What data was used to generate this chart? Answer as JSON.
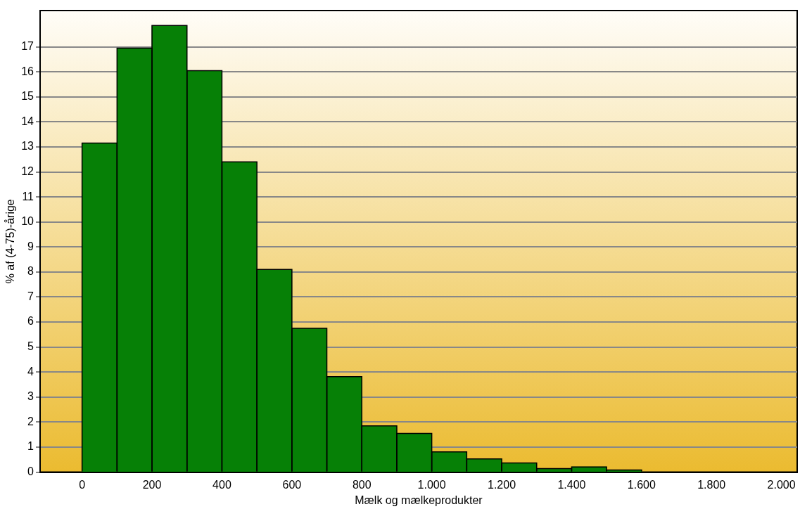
{
  "chart_data": {
    "type": "histogram",
    "xlabel": "Mælk og mælkeprodukter",
    "ylabel": "% af (4-75)-årige",
    "bins": [
      0,
      100,
      200,
      300,
      400,
      500,
      600,
      700,
      800,
      900,
      1000,
      1100,
      1200,
      1300,
      1400,
      1500,
      1600
    ],
    "values": [
      13.15,
      16.95,
      17.85,
      16.05,
      12.4,
      8.1,
      5.75,
      3.82,
      1.85,
      1.55,
      0.81,
      0.53,
      0.37,
      0.14,
      0.21,
      0.09
    ],
    "color": "#068006",
    "xlim": [
      -120,
      2045
    ],
    "xticks": [
      0,
      200,
      400,
      600,
      800,
      {
        "value": 1000,
        "label": "1.000"
      },
      {
        "value": 1200,
        "label": "1.200"
      },
      {
        "value": 1400,
        "label": "1.400"
      },
      {
        "value": 1600,
        "label": "1.600"
      },
      {
        "value": 1800,
        "label": "1.800"
      },
      {
        "value": 2000,
        "label": "2.000"
      }
    ],
    "ylim": [
      0,
      18.45
    ],
    "yticks": [
      0,
      1,
      2,
      3,
      4,
      5,
      6,
      7,
      8,
      9,
      10,
      11,
      12,
      13,
      14,
      15,
      16,
      17
    ],
    "grid": "y",
    "legend": false
  }
}
